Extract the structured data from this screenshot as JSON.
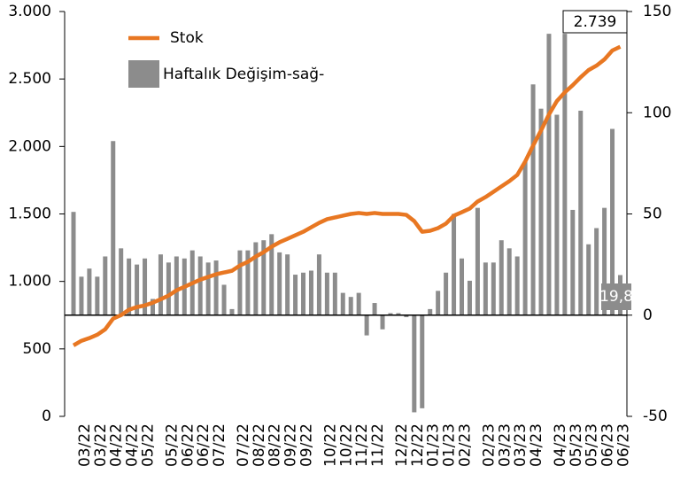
{
  "chart_data": {
    "type": "bar-line",
    "categories": [
      null,
      "03/22",
      null,
      "03/22",
      null,
      "04/22",
      null,
      "04/22",
      null,
      "05/22",
      null,
      null,
      "05/22",
      null,
      "06/22",
      null,
      "06/22",
      null,
      "07/22",
      null,
      null,
      "07/22",
      null,
      "08/22",
      null,
      "08/22",
      null,
      "09/22",
      null,
      "09/22",
      null,
      null,
      "10/22",
      null,
      "10/22",
      null,
      "11/22",
      null,
      "11/22",
      null,
      null,
      "12/22",
      null,
      "12/22",
      null,
      "01/23",
      null,
      "01/23",
      null,
      "02/23",
      null,
      null,
      "02/23",
      null,
      "03/23",
      null,
      "03/23",
      null,
      "04/23",
      null,
      null,
      "04/23",
      null,
      "05/23",
      null,
      "05/23",
      null,
      "06/23",
      null,
      "06/23"
    ],
    "series": [
      {
        "name": "Stok",
        "type": "line",
        "color": "#e87722",
        "values": [
          526,
          560,
          580,
          605,
          645,
          724,
          750,
          790,
          810,
          822,
          842,
          868,
          895,
          934,
          960,
          987,
          1013,
          1033,
          1053,
          1066,
          1079,
          1118,
          1145,
          1184,
          1217,
          1257,
          1290,
          1316,
          1342,
          1368,
          1401,
          1434,
          1461,
          1474,
          1487,
          1500,
          1507,
          1500,
          1507,
          1500,
          1500,
          1500,
          1493,
          1447,
          1368,
          1375,
          1395,
          1428,
          1487,
          1513,
          1540,
          1592,
          1625,
          1664,
          1704,
          1743,
          1789,
          1888,
          2007,
          2118,
          2237,
          2336,
          2401,
          2454,
          2513,
          2566,
          2599,
          2645,
          2711,
          2739
        ],
        "value_labels": [
          null,
          null,
          null,
          null,
          null,
          null,
          null,
          null,
          null,
          null,
          null,
          null,
          null,
          null,
          null,
          null,
          null,
          null,
          null,
          null,
          null,
          null,
          null,
          null,
          null,
          null,
          null,
          null,
          null,
          null,
          null,
          null,
          null,
          null,
          null,
          null,
          null,
          null,
          null,
          null,
          null,
          null,
          null,
          null,
          null,
          null,
          null,
          null,
          null,
          null,
          null,
          null,
          null,
          null,
          null,
          null,
          null,
          null,
          null,
          null,
          null,
          null,
          null,
          null,
          null,
          null,
          null,
          null,
          null,
          "2.739"
        ]
      },
      {
        "name": "Haftalık Değişim-sağ-",
        "type": "bar",
        "axis": "y2",
        "color": "#8c8c8c",
        "values": [
          51,
          19,
          23,
          19,
          29,
          86,
          33,
          28,
          25,
          28,
          8,
          30,
          26,
          29,
          28,
          32,
          29,
          26,
          27,
          15,
          3,
          32,
          32,
          36,
          37,
          40,
          31,
          30,
          20,
          21,
          22,
          30,
          21,
          21,
          11,
          9,
          11,
          -10,
          6,
          -7,
          1,
          1,
          -1,
          -48,
          -46,
          3,
          12,
          21,
          50,
          28,
          17,
          53,
          26,
          26,
          37,
          33,
          29,
          76,
          114,
          102,
          139,
          99,
          139,
          52,
          101,
          35,
          43,
          53,
          92,
          19.8
        ],
        "value_labels": [
          null,
          null,
          null,
          null,
          null,
          null,
          null,
          null,
          null,
          null,
          null,
          null,
          null,
          null,
          null,
          null,
          null,
          null,
          null,
          null,
          null,
          null,
          null,
          null,
          null,
          null,
          null,
          null,
          null,
          null,
          null,
          null,
          null,
          null,
          null,
          null,
          null,
          null,
          null,
          null,
          null,
          null,
          null,
          null,
          null,
          null,
          null,
          null,
          null,
          null,
          null,
          null,
          null,
          null,
          null,
          null,
          null,
          null,
          null,
          null,
          null,
          null,
          null,
          null,
          null,
          null,
          null,
          null,
          null,
          "19,8"
        ]
      }
    ],
    "ylim": [
      0,
      3000
    ],
    "yticks": [
      0,
      500,
      {
        "value": 1000,
        "label": "1.000"
      },
      {
        "value": 1500,
        "label": "1.500"
      },
      {
        "value": 2000,
        "label": "2.000"
      },
      {
        "value": 2500,
        "label": "2.500"
      },
      {
        "value": 3000,
        "label": "3.000"
      }
    ],
    "y2lim": [
      -50,
      150
    ],
    "y2ticks": [
      -50,
      0,
      50,
      100,
      150
    ],
    "legend": "top-left"
  }
}
